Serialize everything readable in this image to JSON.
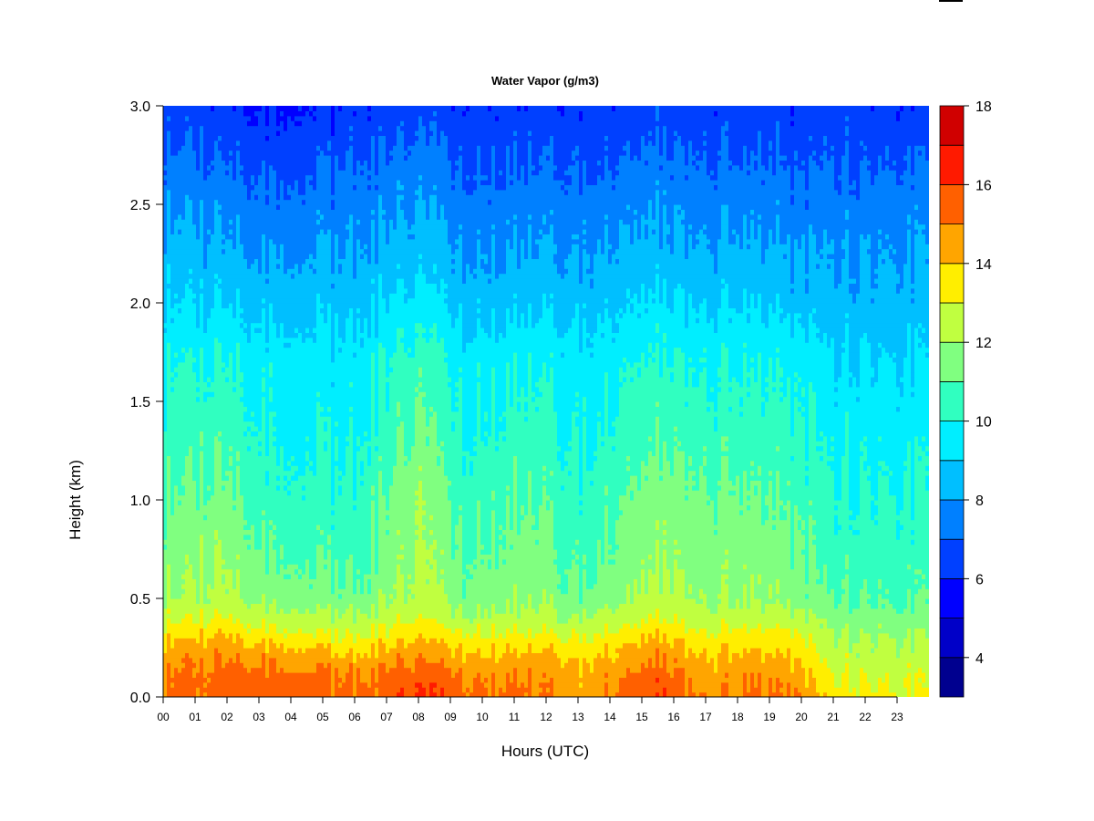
{
  "chart_data": {
    "type": "heatmap",
    "title": "Water Vapor (g/m3)",
    "xlabel": "Hours (UTC)",
    "ylabel": "Height (km)",
    "xlim": [
      0,
      24
    ],
    "ylim": [
      0.0,
      3.0
    ],
    "x_ticks": [
      "00",
      "01",
      "02",
      "03",
      "04",
      "05",
      "06",
      "07",
      "08",
      "09",
      "10",
      "11",
      "12",
      "13",
      "14",
      "15",
      "16",
      "17",
      "18",
      "19",
      "20",
      "21",
      "22",
      "23"
    ],
    "y_ticks": [
      "0.0",
      "0.5",
      "1.0",
      "1.5",
      "2.0",
      "2.5",
      "3.0"
    ],
    "y_tick_values": [
      0.0,
      0.5,
      1.0,
      1.5,
      2.0,
      2.5,
      3.0
    ],
    "colorbar": {
      "levels": [
        3,
        4,
        5,
        6,
        7,
        8,
        9,
        10,
        11,
        12,
        13,
        14,
        15,
        16,
        17,
        18
      ],
      "tick_labels": [
        "4",
        "6",
        "8",
        "10",
        "12",
        "14",
        "16",
        "18"
      ],
      "tick_values": [
        4,
        6,
        8,
        10,
        12,
        14,
        16,
        18
      ],
      "colors": [
        "#00008f",
        "#0000c8",
        "#0000ff",
        "#0040ff",
        "#0080ff",
        "#00bfff",
        "#00eeff",
        "#30ffc0",
        "#80ff80",
        "#c0ff40",
        "#ffee00",
        "#ffa500",
        "#ff6000",
        "#ff1a00",
        "#d00000",
        "#800000"
      ]
    },
    "profile_heights_km": [
      0.0,
      0.1,
      0.2,
      0.3,
      0.4,
      0.5,
      0.7,
      1.0,
      1.3,
      1.7,
      2.0,
      2.3,
      2.6,
      2.8,
      3.0
    ],
    "profile_hours": [
      0,
      2,
      3.5,
      6,
      8,
      9.5,
      11.5,
      13,
      15.7,
      17,
      18.5,
      19.8,
      21,
      23.9
    ],
    "profiles_g_m3": [
      [
        15.2,
        15.0,
        14.6,
        13.8,
        12.8,
        12.0,
        11.5,
        11.0,
        10.5,
        10.0,
        9.0,
        8.3,
        7.6,
        7.0,
        6.5
      ],
      [
        15.6,
        15.5,
        15.0,
        14.2,
        13.0,
        12.3,
        12.0,
        11.4,
        10.8,
        10.1,
        9.0,
        8.2,
        7.5,
        6.8,
        6.3
      ],
      [
        15.6,
        15.4,
        14.8,
        13.5,
        12.5,
        11.6,
        11.0,
        10.4,
        9.9,
        9.5,
        8.6,
        7.8,
        7.0,
        6.4,
        5.8
      ],
      [
        15.2,
        15.0,
        14.2,
        13.0,
        12.2,
        11.2,
        10.7,
        10.2,
        9.8,
        9.4,
        8.6,
        7.9,
        7.3,
        6.7,
        6.2
      ],
      [
        16.2,
        15.8,
        15.0,
        14.0,
        13.0,
        12.5,
        12.2,
        12.0,
        11.4,
        10.6,
        9.5,
        8.5,
        7.8,
        7.2,
        6.6
      ],
      [
        15.3,
        15.0,
        14.2,
        13.2,
        12.2,
        11.4,
        11.0,
        10.5,
        10.0,
        9.5,
        8.5,
        7.8,
        7.1,
        6.6,
        6.2
      ],
      [
        15.4,
        15.0,
        14.5,
        13.5,
        12.5,
        12.0,
        11.6,
        11.2,
        10.6,
        10.0,
        8.9,
        8.1,
        7.4,
        6.9,
        6.4
      ],
      [
        14.5,
        14.3,
        13.8,
        13.0,
        12.1,
        11.2,
        10.8,
        10.3,
        9.9,
        9.5,
        8.6,
        7.9,
        7.2,
        6.6,
        6.3
      ],
      [
        16.0,
        15.6,
        15.0,
        14.2,
        13.0,
        12.5,
        12.0,
        11.6,
        11.0,
        10.2,
        9.2,
        8.3,
        7.6,
        7.0,
        6.5
      ],
      [
        14.8,
        14.5,
        14.0,
        13.2,
        12.4,
        11.8,
        11.5,
        11.2,
        10.5,
        9.8,
        8.8,
        8.0,
        7.3,
        6.8,
        6.4
      ],
      [
        15.2,
        14.9,
        14.3,
        13.5,
        12.6,
        12.0,
        11.7,
        11.2,
        10.6,
        10.0,
        9.0,
        8.2,
        7.5,
        6.9,
        6.4
      ],
      [
        15.0,
        14.7,
        14.0,
        13.2,
        12.4,
        11.6,
        11.2,
        10.8,
        10.3,
        9.7,
        8.6,
        7.9,
        7.2,
        6.6,
        6.3
      ],
      [
        13.5,
        13.0,
        12.6,
        12.2,
        11.6,
        11.0,
        10.6,
        10.2,
        9.8,
        9.2,
        8.4,
        7.9,
        7.3,
        6.8,
        6.5
      ],
      [
        13.0,
        12.8,
        12.4,
        12.0,
        11.4,
        10.8,
        10.5,
        10.1,
        9.7,
        9.0,
        8.4,
        7.9,
        7.3,
        6.7,
        6.2
      ]
    ]
  }
}
